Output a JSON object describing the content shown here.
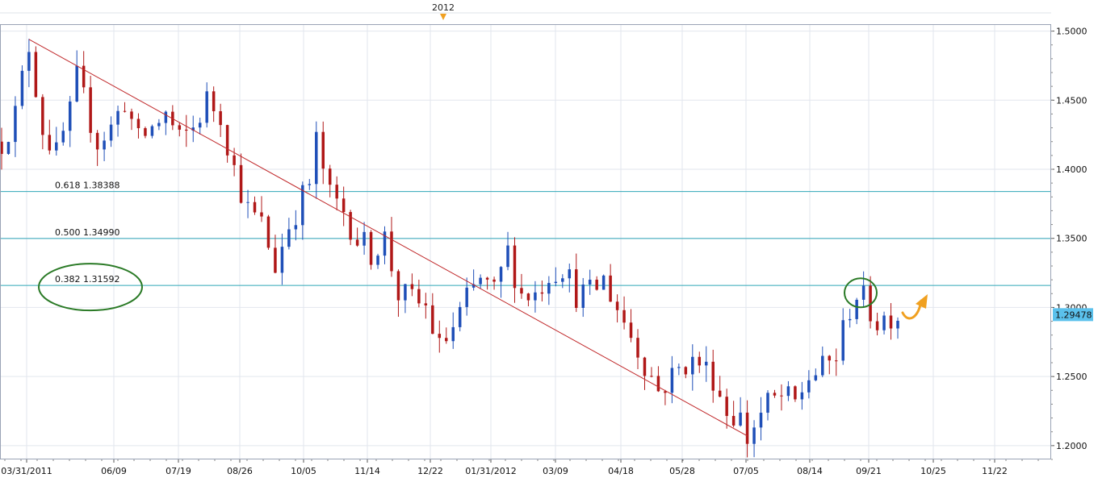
{
  "chart_data": {
    "type": "candlestick",
    "title": "",
    "xlabel": "",
    "ylabel": "",
    "ylim": [
      1.19,
      1.505
    ],
    "year_marker": "2012",
    "x_ticks": [
      "03/31/2011",
      "06/09",
      "07/19",
      "08/26",
      "10/05",
      "11/14",
      "12/22",
      "01/31/2012",
      "03/09",
      "04/18",
      "05/28",
      "07/05",
      "08/14",
      "09/21",
      "10/25",
      "11/22"
    ],
    "y_ticks": [
      {
        "value": 1.5,
        "label": "1.5000"
      },
      {
        "value": 1.45,
        "label": "1.4500"
      },
      {
        "value": 1.4,
        "label": "1.4000"
      },
      {
        "value": 1.35,
        "label": "1.3500"
      },
      {
        "value": 1.3,
        "label": "1.3000"
      },
      {
        "value": 1.25,
        "label": "1.2500"
      },
      {
        "value": 1.2,
        "label": "1.2000"
      }
    ],
    "last_price": {
      "value": 1.29478,
      "label": "1.29478"
    },
    "fib_levels": [
      {
        "ratio": "0.618",
        "value": 1.38388,
        "label": "0.618 1.38388"
      },
      {
        "ratio": "0.500",
        "value": 1.3499,
        "label": "0.500 1.34990"
      },
      {
        "ratio": "0.382",
        "value": 1.31592,
        "label": "0.382 1.31592"
      }
    ],
    "trendline": {
      "start": {
        "index": 4,
        "value": 1.494
      },
      "end": {
        "index": 109,
        "value": 1.207
      }
    },
    "anchors": [
      {
        "i": 0,
        "v": 1.42
      },
      {
        "i": 2,
        "v": 1.44
      },
      {
        "i": 4,
        "v": 1.49
      },
      {
        "i": 6,
        "v": 1.43
      },
      {
        "i": 8,
        "v": 1.41
      },
      {
        "i": 10,
        "v": 1.44
      },
      {
        "i": 11,
        "v": 1.465
      },
      {
        "i": 14,
        "v": 1.42
      },
      {
        "i": 16,
        "v": 1.43
      },
      {
        "i": 18,
        "v": 1.45
      },
      {
        "i": 20,
        "v": 1.42
      },
      {
        "i": 22,
        "v": 1.43
      },
      {
        "i": 24,
        "v": 1.44
      },
      {
        "i": 26,
        "v": 1.42
      },
      {
        "i": 28,
        "v": 1.43
      },
      {
        "i": 30,
        "v": 1.45
      },
      {
        "i": 32,
        "v": 1.44
      },
      {
        "i": 34,
        "v": 1.4
      },
      {
        "i": 36,
        "v": 1.37
      },
      {
        "i": 38,
        "v": 1.36
      },
      {
        "i": 40,
        "v": 1.33
      },
      {
        "i": 42,
        "v": 1.36
      },
      {
        "i": 44,
        "v": 1.38
      },
      {
        "i": 45,
        "v": 1.39
      },
      {
        "i": 46,
        "v": 1.42
      },
      {
        "i": 48,
        "v": 1.38
      },
      {
        "i": 50,
        "v": 1.37
      },
      {
        "i": 52,
        "v": 1.35
      },
      {
        "i": 54,
        "v": 1.34
      },
      {
        "i": 56,
        "v": 1.35
      },
      {
        "i": 58,
        "v": 1.31
      },
      {
        "i": 60,
        "v": 1.305
      },
      {
        "i": 62,
        "v": 1.3
      },
      {
        "i": 64,
        "v": 1.27
      },
      {
        "i": 66,
        "v": 1.285
      },
      {
        "i": 68,
        "v": 1.305
      },
      {
        "i": 70,
        "v": 1.32
      },
      {
        "i": 72,
        "v": 1.31
      },
      {
        "i": 74,
        "v": 1.34
      },
      {
        "i": 76,
        "v": 1.31
      },
      {
        "i": 78,
        "v": 1.31
      },
      {
        "i": 80,
        "v": 1.325
      },
      {
        "i": 82,
        "v": 1.33
      },
      {
        "i": 84,
        "v": 1.31
      },
      {
        "i": 86,
        "v": 1.31
      },
      {
        "i": 88,
        "v": 1.32
      },
      {
        "i": 90,
        "v": 1.3
      },
      {
        "i": 92,
        "v": 1.28
      },
      {
        "i": 94,
        "v": 1.26
      },
      {
        "i": 96,
        "v": 1.24
      },
      {
        "i": 98,
        "v": 1.25
      },
      {
        "i": 100,
        "v": 1.26
      },
      {
        "i": 102,
        "v": 1.26
      },
      {
        "i": 104,
        "v": 1.25
      },
      {
        "i": 106,
        "v": 1.225
      },
      {
        "i": 108,
        "v": 1.22
      },
      {
        "i": 109,
        "v": 1.205
      },
      {
        "i": 110,
        "v": 1.215
      },
      {
        "i": 112,
        "v": 1.23
      },
      {
        "i": 114,
        "v": 1.235
      },
      {
        "i": 116,
        "v": 1.23
      },
      {
        "i": 118,
        "v": 1.25
      },
      {
        "i": 120,
        "v": 1.255
      },
      {
        "i": 122,
        "v": 1.265
      },
      {
        "i": 124,
        "v": 1.3
      },
      {
        "i": 125,
        "v": 1.31
      },
      {
        "i": 126,
        "v": 1.305
      },
      {
        "i": 128,
        "v": 1.29
      },
      {
        "i": 130,
        "v": 1.295
      },
      {
        "i": 131,
        "v": 1.295
      }
    ],
    "bullish_color": "#1f4fb8",
    "bearish_color": "#b01818",
    "trendline_color": "#c0282a",
    "fib_color": "#2fa6b8",
    "circle_color": "#2a7a26",
    "arrow_color": "#f0a020",
    "price_label_bg": "#5bc1ec"
  }
}
